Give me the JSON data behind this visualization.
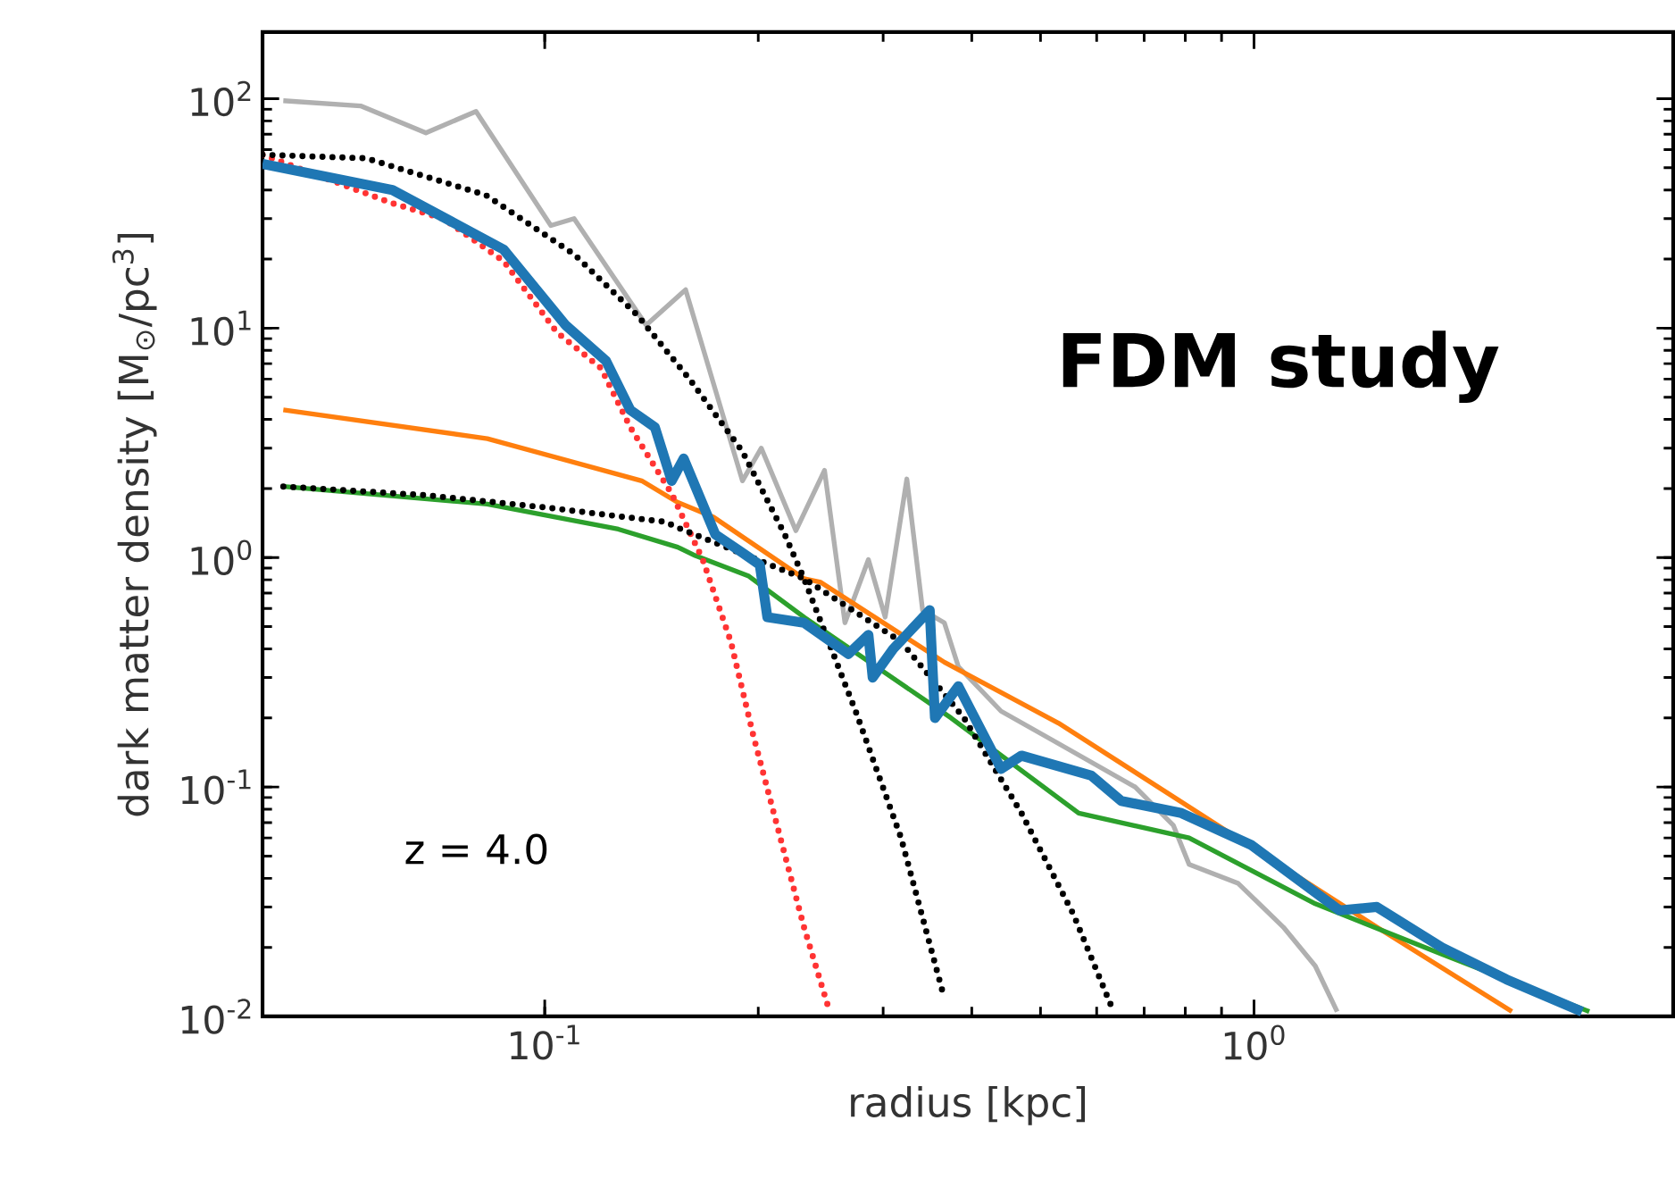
{
  "chart_data": {
    "type": "line",
    "xlabel": "radius [kpc]",
    "ylabel": "dark matter density [M$_{⊙}$/pc$^{3}$]",
    "log": "xy",
    "xlim": [
      0.04,
      3.9
    ],
    "ylim": [
      0.01,
      195
    ],
    "xticks": [
      {
        "value": 0.1,
        "label": "10$^{-1}$"
      },
      {
        "value": 1,
        "label": "10$^{0}$"
      }
    ],
    "yticks": [
      {
        "value": 0.01,
        "label": "10$^{-2}$"
      },
      {
        "value": 0.1,
        "label": "10$^{-1}$"
      },
      {
        "value": 1,
        "label": "10$^{0}$"
      },
      {
        "value": 10,
        "label": "10$^{1}$"
      },
      {
        "value": 100,
        "label": "10$^{2}$"
      }
    ],
    "annotations": [
      "z = 4.0",
      "**FDM study**"
    ],
    "series": [
      {
        "color": "#b0b0b0",
        "x": [
          0.0428,
          0.055,
          0.068,
          0.08,
          0.102,
          0.11,
          0.139,
          0.158,
          0.19,
          0.202,
          0.226,
          0.248,
          0.265,
          0.286,
          0.302,
          0.324,
          0.341,
          0.366,
          0.383,
          0.44,
          0.52,
          0.68,
          0.77,
          0.81,
          0.95,
          1.1,
          1.22,
          1.31
        ],
        "values": [
          98,
          93,
          71,
          88,
          28,
          30,
          10.3,
          14.7,
          2.16,
          3.0,
          1.31,
          2.4,
          0.52,
          0.98,
          0.55,
          2.2,
          0.59,
          0.52,
          0.335,
          0.214,
          0.16,
          0.1,
          0.068,
          0.046,
          0.038,
          0.0245,
          0.0166,
          0.0105
        ]
      },
      {
        "color": "#ff7f0e",
        "x": [
          0.0428,
          0.083,
          0.137,
          0.154,
          0.173,
          0.232,
          0.245,
          0.366,
          0.53,
          0.89,
          1.49,
          2.31
        ],
        "values": [
          4.4,
          3.3,
          2.16,
          1.74,
          1.5,
          0.81,
          0.78,
          0.35,
          0.19,
          0.068,
          0.0245,
          0.0105
        ]
      },
      {
        "color": "#2ca02c",
        "x": [
          0.0428,
          0.083,
          0.127,
          0.154,
          0.163,
          0.194,
          0.232,
          0.374,
          0.566,
          0.81,
          1.22,
          1.84,
          2.97
        ],
        "values": [
          2.04,
          1.71,
          1.33,
          1.11,
          1.02,
          0.83,
          0.55,
          0.2,
          0.077,
          0.06,
          0.031,
          0.0187,
          0.0105
        ]
      },
      {
        "color": "#ff3333",
        "line_style": "dotted",
        "x": [
          0.04,
          0.061,
          0.072,
          0.0875,
          0.104,
          0.12,
          0.132,
          0.151,
          0.167,
          0.183,
          0.197,
          0.214,
          0.232,
          0.251
        ],
        "values": [
          57,
          35,
          30,
          19.6,
          9.6,
          6.7,
          3.7,
          1.9,
          0.98,
          0.43,
          0.166,
          0.063,
          0.0245,
          0.011
        ]
      },
      {
        "color": "#000000",
        "line_style": "dotted",
        "x": [
          0.04,
          0.056,
          0.0826,
          0.11,
          0.135,
          0.16,
          0.19,
          0.218,
          0.232,
          0.275,
          0.318,
          0.366
        ],
        "values": [
          57,
          55,
          38,
          21,
          11.4,
          6.0,
          2.9,
          1.26,
          0.81,
          0.21,
          0.06,
          0.012
        ]
      },
      {
        "color": "#000000",
        "line_style": "dotted",
        "x": [
          0.0428,
          0.068,
          0.101,
          0.148,
          0.154,
          0.232,
          0.318,
          0.39,
          0.47,
          0.556,
          0.63
        ],
        "values": [
          2.04,
          1.87,
          1.65,
          1.43,
          1.35,
          0.81,
          0.43,
          0.2,
          0.077,
          0.028,
          0.011
        ]
      },
      {
        "color": "#1f77b4",
        "x": [
          0.04,
          0.061,
          0.0875,
          0.107,
          0.122,
          0.132,
          0.143,
          0.151,
          0.157,
          0.174,
          0.19,
          0.201,
          0.206,
          0.232,
          0.268,
          0.286,
          0.29,
          0.31,
          0.349,
          0.355,
          0.383,
          0.44,
          0.47,
          0.59,
          0.65,
          0.79,
          0.99,
          1.32,
          1.49,
          1.84,
          2.27,
          2.9
        ],
        "values": [
          52,
          40,
          22,
          10.3,
          7.2,
          4.4,
          3.7,
          2.16,
          2.7,
          1.26,
          1.05,
          0.93,
          0.55,
          0.52,
          0.38,
          0.46,
          0.3,
          0.4,
          0.59,
          0.2,
          0.275,
          0.12,
          0.137,
          0.112,
          0.087,
          0.077,
          0.056,
          0.029,
          0.03,
          0.02,
          0.0145,
          0.0105
        ]
      }
    ]
  }
}
